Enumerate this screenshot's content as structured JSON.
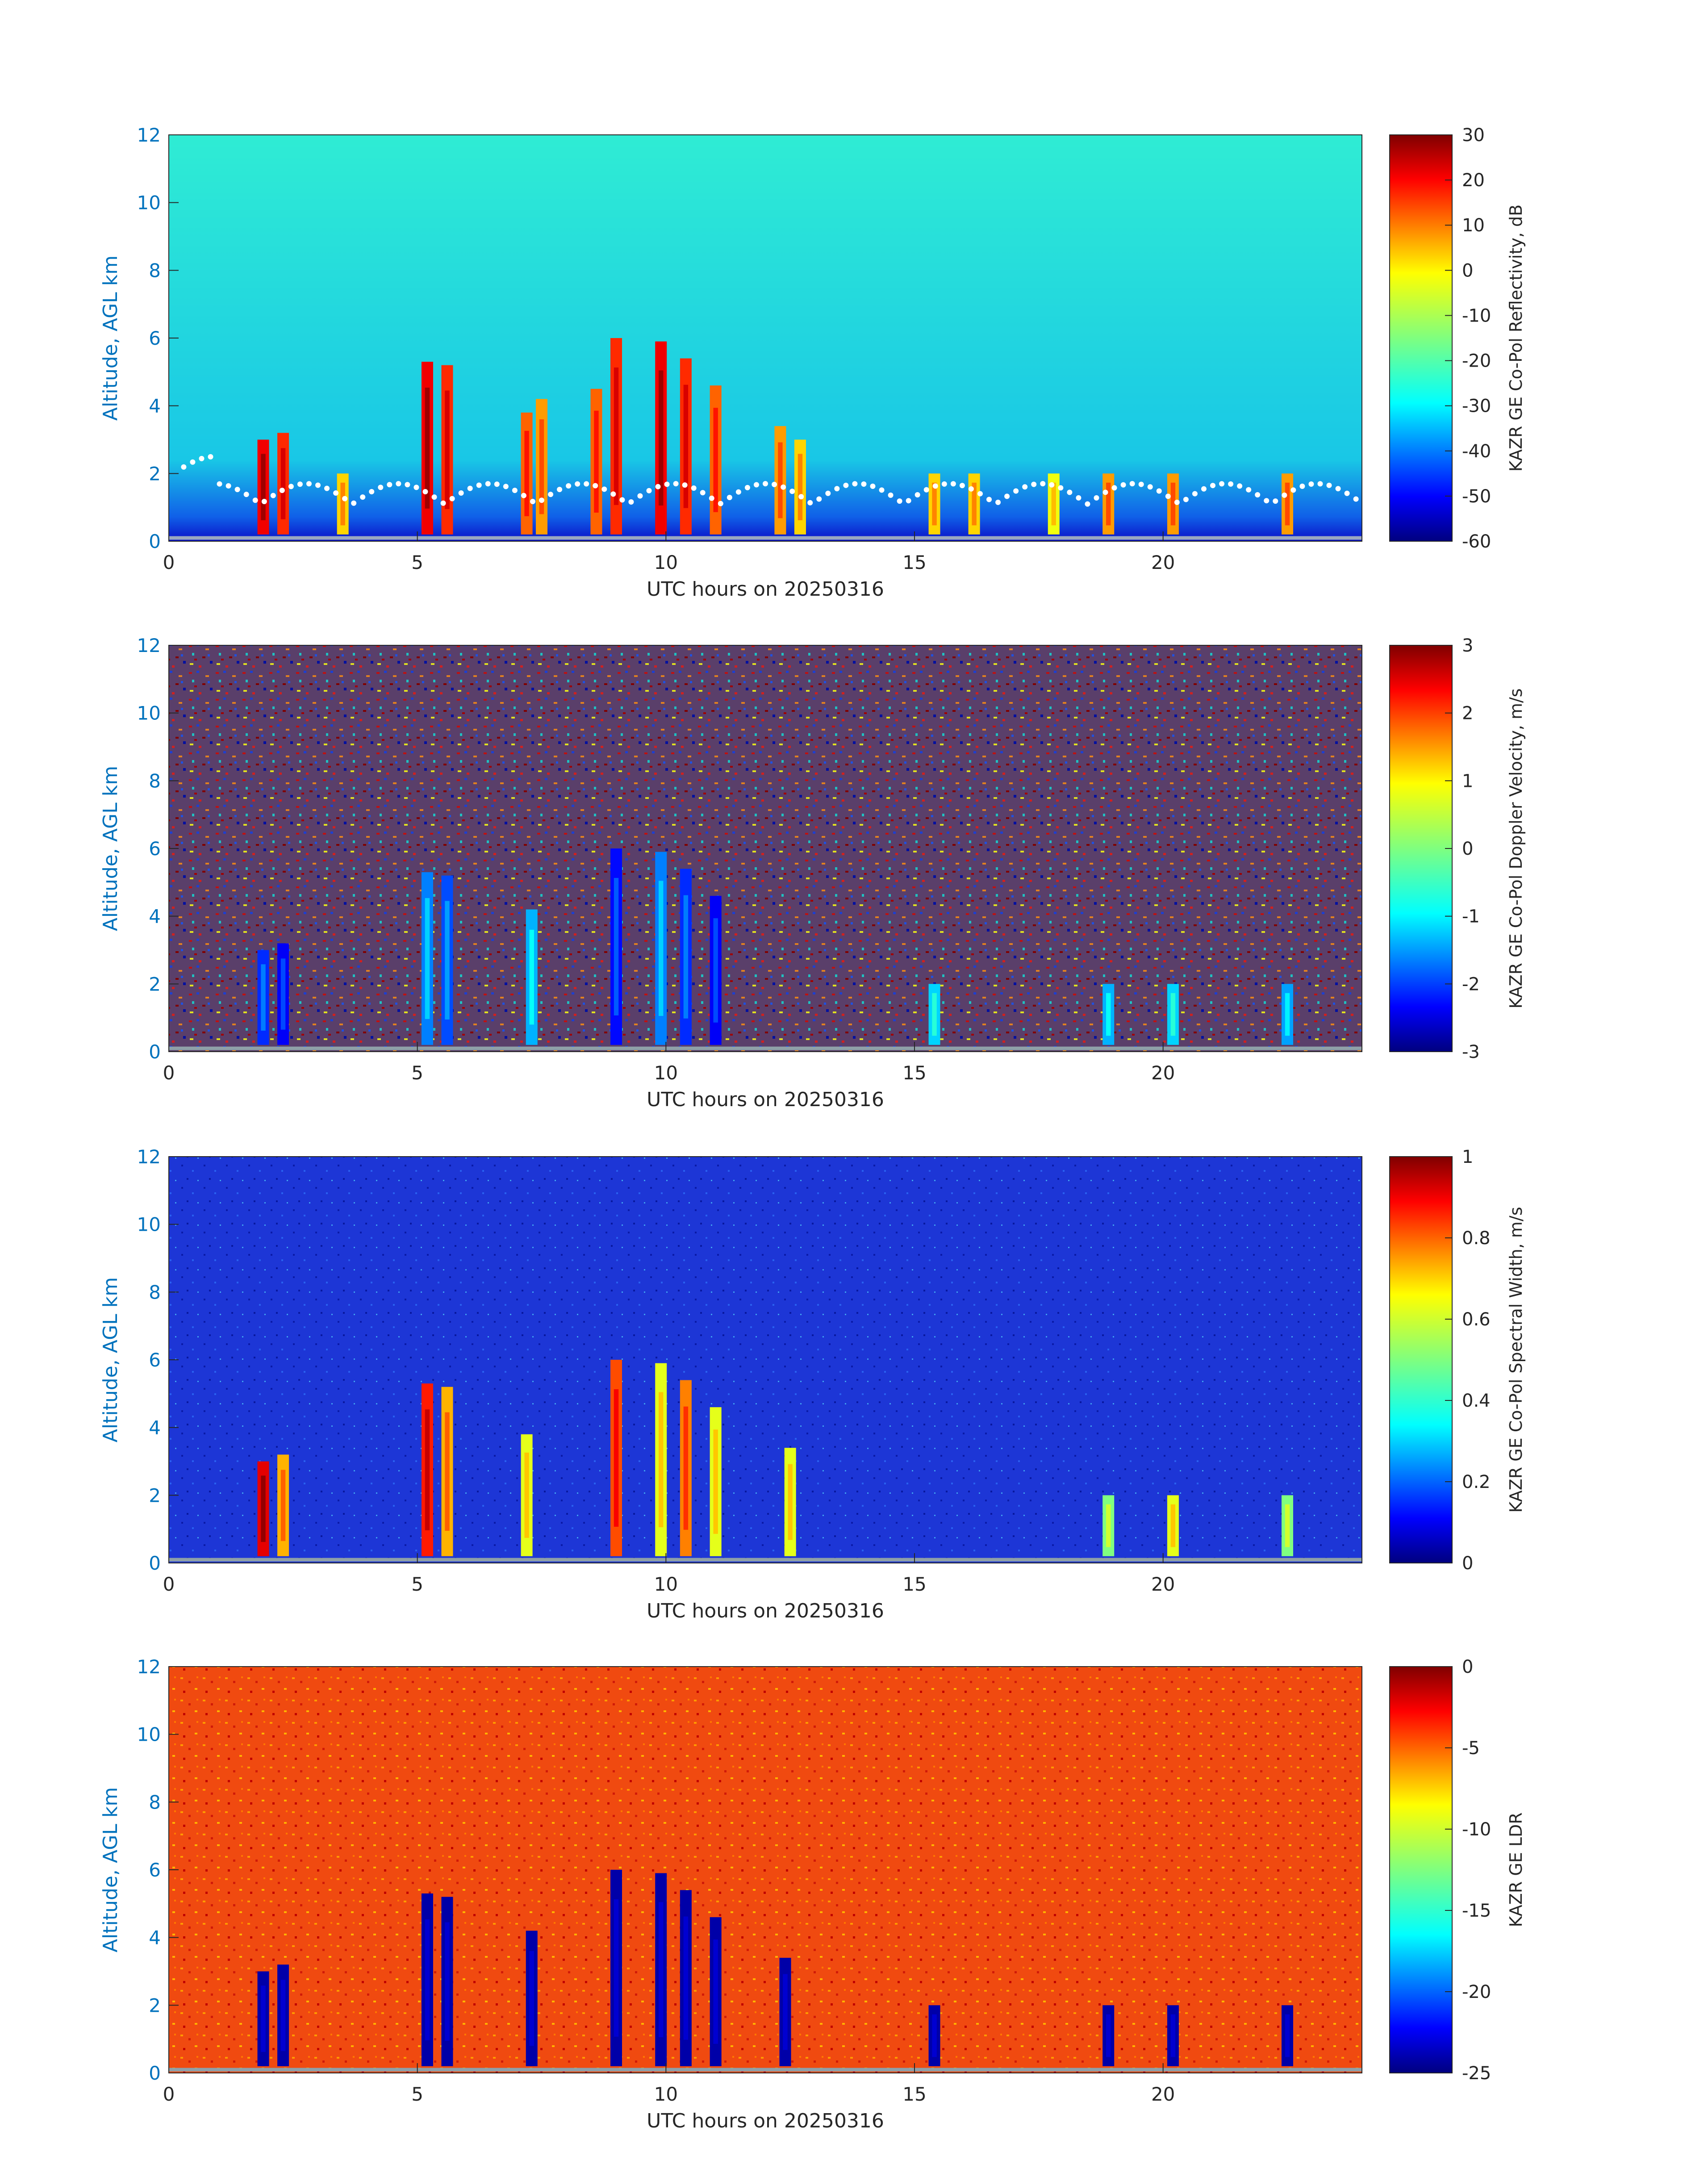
{
  "figure": {
    "x_axis_label": "UTC hours on 20250316",
    "y_axis_label": "Altitude, AGL km",
    "x_ticks": [
      "0",
      "5",
      "10",
      "15",
      "20"
    ],
    "y_ticks": [
      "0",
      "2",
      "4",
      "6",
      "8",
      "10",
      "12"
    ]
  },
  "chart_data": [
    {
      "type": "heatmap",
      "variable": "KAZR GE Co-Pol Reflectivity",
      "colorbar_label": "KAZR GE Co-Pol Reflectivity, dB",
      "clim": [
        -60,
        30
      ],
      "colorbar_ticks": [
        "30",
        "20",
        "10",
        "0",
        "-10",
        "-20",
        "-30",
        "-40",
        "-50",
        "-60"
      ],
      "colormap": "jet",
      "xlim": [
        0,
        24
      ],
      "ylim": [
        0,
        12
      ],
      "overlay": "white dots (cloud base) near 1-2 km",
      "background_value": -28,
      "cells": [
        {
          "t": 1.9,
          "top": 3.0,
          "v": 20
        },
        {
          "t": 2.3,
          "top": 3.2,
          "v": 15
        },
        {
          "t": 3.5,
          "top": 2.0,
          "v": 0
        },
        {
          "t": 5.2,
          "top": 5.3,
          "v": 20
        },
        {
          "t": 5.6,
          "top": 5.2,
          "v": 15
        },
        {
          "t": 7.2,
          "top": 3.8,
          "v": 10
        },
        {
          "t": 7.5,
          "top": 4.2,
          "v": 5
        },
        {
          "t": 8.6,
          "top": 4.5,
          "v": 10
        },
        {
          "t": 9.0,
          "top": 6.0,
          "v": 15
        },
        {
          "t": 9.9,
          "top": 5.9,
          "v": 20
        },
        {
          "t": 10.4,
          "top": 5.4,
          "v": 15
        },
        {
          "t": 11.0,
          "top": 4.6,
          "v": 10
        },
        {
          "t": 12.3,
          "top": 3.4,
          "v": 5
        },
        {
          "t": 12.7,
          "top": 3.0,
          "v": 0
        },
        {
          "t": 15.4,
          "top": 2.0,
          "v": 0
        },
        {
          "t": 16.2,
          "top": 2.0,
          "v": 0
        },
        {
          "t": 17.8,
          "top": 2.0,
          "v": -5
        },
        {
          "t": 18.9,
          "top": 2.0,
          "v": 5
        },
        {
          "t": 20.2,
          "top": 2.0,
          "v": 5
        },
        {
          "t": 22.5,
          "top": 2.0,
          "v": 5
        }
      ]
    },
    {
      "type": "heatmap",
      "variable": "KAZR GE Co-Pol Doppler Velocity",
      "colorbar_label": "KAZR GE Co-Pol Doppler Velocity, m/s",
      "clim": [
        -3,
        3
      ],
      "colorbar_ticks": [
        "3",
        "2",
        "1",
        "0",
        "-1",
        "-2",
        "-3"
      ],
      "colormap": "jet",
      "xlim": [
        0,
        24
      ],
      "ylim": [
        0,
        12
      ],
      "background": "noise spanning full range",
      "cells": [
        {
          "t": 1.9,
          "top": 3.0,
          "v": -2.0
        },
        {
          "t": 2.3,
          "top": 3.2,
          "v": -2.3
        },
        {
          "t": 5.2,
          "top": 5.3,
          "v": -1.5
        },
        {
          "t": 5.6,
          "top": 5.2,
          "v": -1.8
        },
        {
          "t": 7.3,
          "top": 4.2,
          "v": -1.2
        },
        {
          "t": 9.0,
          "top": 6.0,
          "v": -2.2
        },
        {
          "t": 9.9,
          "top": 5.9,
          "v": -1.5
        },
        {
          "t": 10.4,
          "top": 5.4,
          "v": -2.0
        },
        {
          "t": 11.0,
          "top": 4.6,
          "v": -2.3
        },
        {
          "t": 15.4,
          "top": 2.0,
          "v": -1.0
        },
        {
          "t": 18.9,
          "top": 2.0,
          "v": -1.2
        },
        {
          "t": 20.2,
          "top": 2.0,
          "v": -1.0
        },
        {
          "t": 22.5,
          "top": 2.0,
          "v": -1.3
        }
      ]
    },
    {
      "type": "heatmap",
      "variable": "KAZR GE Co-Pol Spectral Width",
      "colorbar_label": "KAZR GE Co-Pol Spectral Width, m/s",
      "clim": [
        0,
        1
      ],
      "colorbar_ticks": [
        "1",
        "0.8",
        "0.6",
        "0.4",
        "0.2",
        "0"
      ],
      "colormap": "jet",
      "xlim": [
        0,
        24
      ],
      "ylim": [
        0,
        12
      ],
      "background_value": 0.05,
      "cells": [
        {
          "t": 1.9,
          "top": 3.0,
          "v": 0.9
        },
        {
          "t": 2.3,
          "top": 3.2,
          "v": 0.7
        },
        {
          "t": 5.2,
          "top": 5.3,
          "v": 0.85
        },
        {
          "t": 5.6,
          "top": 5.2,
          "v": 0.7
        },
        {
          "t": 7.2,
          "top": 3.8,
          "v": 0.6
        },
        {
          "t": 9.0,
          "top": 6.0,
          "v": 0.8
        },
        {
          "t": 9.9,
          "top": 5.9,
          "v": 0.6
        },
        {
          "t": 10.4,
          "top": 5.4,
          "v": 0.75
        },
        {
          "t": 11.0,
          "top": 4.6,
          "v": 0.6
        },
        {
          "t": 12.5,
          "top": 3.4,
          "v": 0.6
        },
        {
          "t": 18.9,
          "top": 2.0,
          "v": 0.5
        },
        {
          "t": 20.2,
          "top": 2.0,
          "v": 0.6
        },
        {
          "t": 22.5,
          "top": 2.0,
          "v": 0.5
        }
      ]
    },
    {
      "type": "heatmap",
      "variable": "KAZR GE LDR",
      "colorbar_label": "KAZR GE LDR",
      "clim": [
        -25,
        0
      ],
      "colorbar_ticks": [
        "0",
        "-5",
        "-10",
        "-15",
        "-20",
        "-25"
      ],
      "colormap": "jet",
      "xlim": [
        0,
        24
      ],
      "ylim": [
        0,
        12
      ],
      "background_value": -4,
      "cells": [
        {
          "t": 1.9,
          "top": 3.0,
          "v": -24
        },
        {
          "t": 2.3,
          "top": 3.2,
          "v": -24
        },
        {
          "t": 5.2,
          "top": 5.3,
          "v": -24
        },
        {
          "t": 5.6,
          "top": 5.2,
          "v": -24
        },
        {
          "t": 7.3,
          "top": 4.2,
          "v": -24
        },
        {
          "t": 9.0,
          "top": 6.0,
          "v": -24
        },
        {
          "t": 9.9,
          "top": 5.9,
          "v": -24
        },
        {
          "t": 10.4,
          "top": 5.4,
          "v": -24
        },
        {
          "t": 11.0,
          "top": 4.6,
          "v": -24
        },
        {
          "t": 12.4,
          "top": 3.4,
          "v": -24
        },
        {
          "t": 15.4,
          "top": 2.0,
          "v": -24
        },
        {
          "t": 18.9,
          "top": 2.0,
          "v": -24
        },
        {
          "t": 20.2,
          "top": 2.0,
          "v": -24
        },
        {
          "t": 22.5,
          "top": 2.0,
          "v": -24
        }
      ]
    }
  ]
}
